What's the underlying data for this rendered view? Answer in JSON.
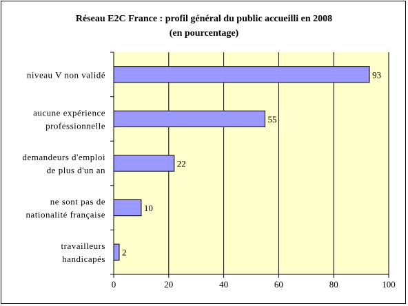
{
  "chart_data": {
    "type": "bar",
    "orientation": "horizontal",
    "title": "Réseau E2C France : profil général du public accueilli en 2008",
    "subtitle": "(en pourcentage)",
    "categories": [
      [
        "niveau V non validé"
      ],
      [
        "aucune expérience",
        "professionnelle"
      ],
      [
        "demandeurs d'emploi",
        "de plus d'un an"
      ],
      [
        "ne sont pas de",
        "nationalité française"
      ],
      [
        "travailleurs",
        "handicapés"
      ]
    ],
    "values": [
      93,
      55,
      22,
      10,
      2
    ],
    "xlim": [
      0,
      100
    ],
    "xticks": [
      0,
      20,
      40,
      60,
      80,
      100
    ],
    "grid": true,
    "legend": "none",
    "colors": {
      "plot_background": "#ffffcc",
      "bar_fill": "#9999ff",
      "bar_stroke": "#000000",
      "grid": "#000000"
    }
  }
}
